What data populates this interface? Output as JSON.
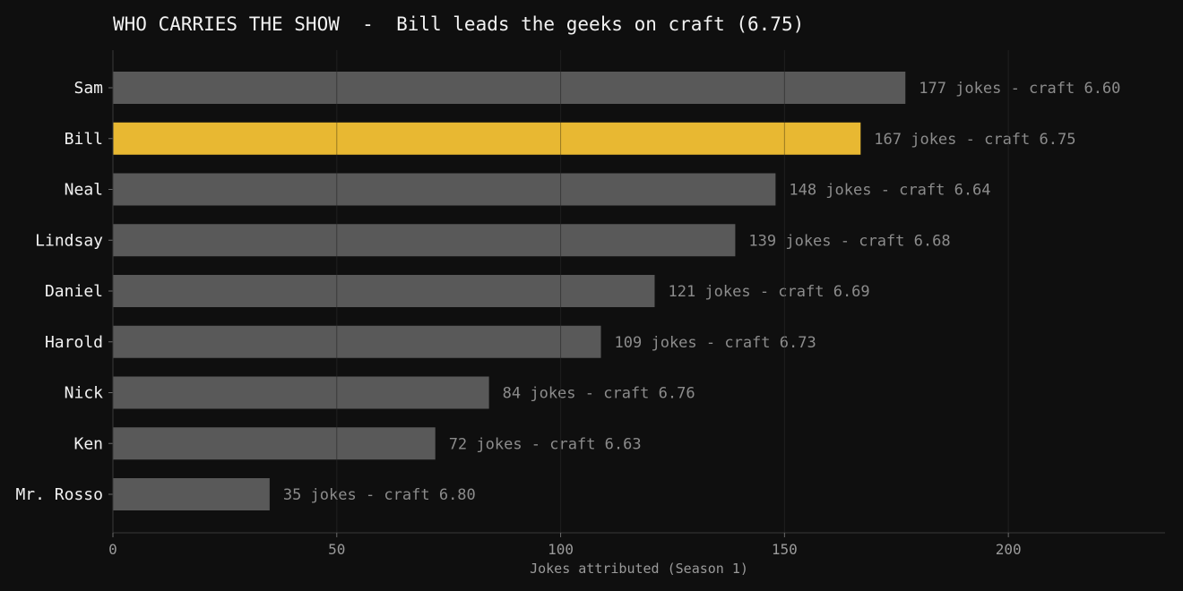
{
  "chart_data": {
    "type": "bar",
    "orientation": "horizontal",
    "title": "WHO CARRIES THE SHOW  -  Bill leads the geeks on craft (6.75)",
    "xlabel": "Jokes attributed (Season 1)",
    "ylabel": "",
    "xlim": [
      0,
      235
    ],
    "xticks": [
      0,
      50,
      100,
      150,
      200
    ],
    "grid": "vertical",
    "categories": [
      "Sam",
      "Bill",
      "Neal",
      "Lindsay",
      "Daniel",
      "Harold",
      "Nick",
      "Ken",
      "Mr. Rosso"
    ],
    "values": [
      177,
      167,
      148,
      139,
      121,
      109,
      84,
      72,
      35
    ],
    "craft": [
      6.6,
      6.75,
      6.64,
      6.68,
      6.69,
      6.73,
      6.76,
      6.63,
      6.8
    ],
    "labels": [
      "177 jokes  -  craft 6.60",
      "167 jokes  -  craft 6.75",
      "148 jokes  -  craft 6.64",
      "139 jokes  -  craft 6.68",
      "121 jokes  -  craft 6.69",
      "109 jokes  -  craft 6.73",
      "84 jokes  -  craft 6.76",
      "72 jokes  -  craft 6.63",
      "35 jokes  -  craft 6.80"
    ],
    "highlight": "Bill",
    "colors": {
      "background": "#0f0f0f",
      "bar": "#595959",
      "highlight": "#e8b832",
      "grid": "#2e2e2e",
      "axis": "#3a3a3a",
      "label": "#f2f2f2",
      "value_label": "#8c8c8c",
      "tick": "#9a9a9a"
    }
  }
}
